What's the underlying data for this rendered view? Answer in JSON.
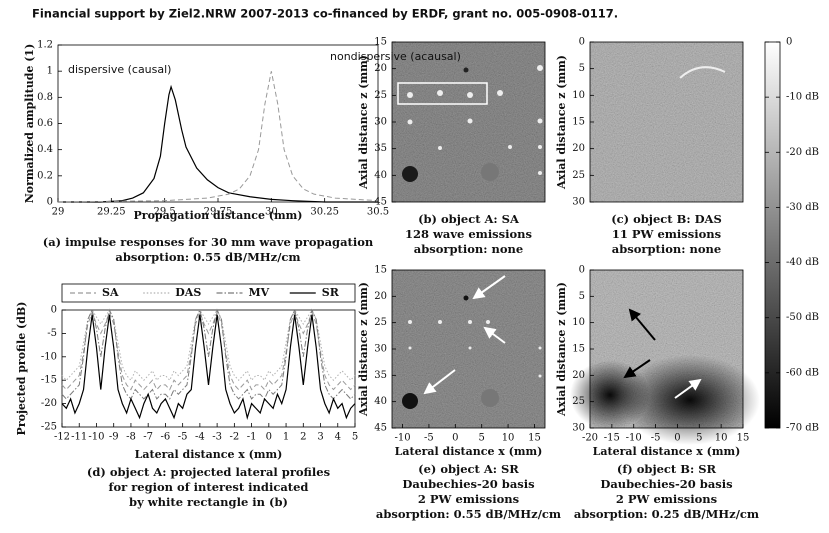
{
  "header": {
    "text": "Financial support by Ziel2.NRW 2007-2013 co-financed by ERDF, grant no. 005-0908-0117."
  },
  "chart_data": [
    {
      "type": "line",
      "caption": [
        "(a) impulse responses for 30 mm wave propagation",
        "absorption: 0.55 dB/MHz/cm"
      ],
      "xlabel": "Propagation distance (mm)",
      "ylabel": "Normalized amplitude (1)",
      "xlim": [
        29,
        30.5
      ],
      "xticks": [
        29,
        29.25,
        29.5,
        29.75,
        30,
        30.25,
        30.5
      ],
      "ylim": [
        0,
        1.2
      ],
      "yticks": [
        0,
        0.2,
        0.4,
        0.6,
        0.8,
        1,
        1.2
      ],
      "series": [
        {
          "name": "dispersive (causal)",
          "color": "#000000",
          "style": "solid",
          "x": [
            29,
            29.2,
            29.3,
            29.35,
            29.4,
            29.45,
            29.48,
            29.5,
            29.52,
            29.53,
            29.55,
            29.58,
            29.6,
            29.65,
            29.7,
            29.75,
            29.8,
            29.9,
            30,
            30.1,
            30.25,
            30.5
          ],
          "values": [
            0,
            0,
            0.01,
            0.03,
            0.07,
            0.18,
            0.35,
            0.6,
            0.82,
            0.88,
            0.78,
            0.55,
            0.42,
            0.26,
            0.17,
            0.11,
            0.07,
            0.04,
            0.02,
            0.01,
            0,
            0
          ]
        },
        {
          "name": "nondispersive (acausal)",
          "color": "#999999",
          "style": "dashed",
          "x": [
            29,
            29.5,
            29.7,
            29.8,
            29.85,
            29.9,
            29.94,
            29.97,
            30,
            30.03,
            30.06,
            30.1,
            30.15,
            30.2,
            30.3,
            30.5
          ],
          "values": [
            0,
            0.01,
            0.03,
            0.06,
            0.1,
            0.2,
            0.4,
            0.75,
            1,
            0.75,
            0.4,
            0.2,
            0.1,
            0.06,
            0.03,
            0.01
          ]
        }
      ]
    },
    {
      "type": "line",
      "caption": [
        "(d) object A: projected lateral profiles",
        "for region of interest indicated",
        "by white rectangle in (b)"
      ],
      "xlabel": "Lateral distance x (mm)",
      "ylabel": "Projected profile (dB)",
      "legend": "top",
      "xlim": [
        -12,
        5
      ],
      "xticks": [
        -12,
        -11,
        -10,
        -9,
        -8,
        -7,
        -6,
        -5,
        -4,
        -3,
        -2,
        -1,
        0,
        1,
        2,
        3,
        4,
        5
      ],
      "ylim": [
        -25,
        0
      ],
      "yticks": [
        -25,
        -20,
        -15,
        -10,
        -5,
        0
      ],
      "x": [
        -12,
        -11.75,
        -11.5,
        -11.25,
        -11,
        -10.75,
        -10.5,
        -10.25,
        -10,
        -9.75,
        -9.5,
        -9.25,
        -9,
        -8.75,
        -8.5,
        -8.25,
        -8,
        -7.75,
        -7.5,
        -7.25,
        -7,
        -6.75,
        -6.5,
        -6.25,
        -6,
        -5.75,
        -5.5,
        -5.25,
        -5,
        -4.75,
        -4.5,
        -4.25,
        -4,
        -3.75,
        -3.5,
        -3.25,
        -3,
        -2.75,
        -2.5,
        -2.25,
        -2,
        -1.75,
        -1.5,
        -1.25,
        -1,
        -0.75,
        -0.5,
        -0.25,
        0,
        0.25,
        0.5,
        0.75,
        1,
        1.25,
        1.5,
        1.75,
        2,
        2.25,
        2.5,
        2.75,
        3,
        3.25,
        3.5,
        3.75,
        4,
        4.25,
        4.5,
        4.75,
        5
      ],
      "series": [
        {
          "name": "SA",
          "color": "#9a9a9a",
          "style": "dashed",
          "values": [
            -16,
            -17,
            -16,
            -15,
            -14,
            -9,
            -3,
            -0.5,
            -3,
            -5,
            -3,
            -0.5,
            -3,
            -9,
            -14,
            -16,
            -17,
            -15,
            -16,
            -17,
            -16,
            -15,
            -17,
            -16,
            -16,
            -17,
            -15,
            -16,
            -15,
            -14,
            -9,
            -3,
            -0.5,
            -3,
            -5,
            -3,
            -0.5,
            -3,
            -9,
            -14,
            -16,
            -17,
            -16,
            -15,
            -17,
            -16,
            -16,
            -17,
            -15,
            -16,
            -15,
            -14,
            -9,
            -3,
            -0.5,
            -3,
            -5,
            -3,
            -0.5,
            -3,
            -9,
            -14,
            -16,
            -17,
            -16,
            -15,
            -16,
            -17,
            -16
          ]
        },
        {
          "name": "DAS",
          "color": "#b0b0b0",
          "style": "dotted",
          "values": [
            -14,
            -15,
            -14,
            -13,
            -12,
            -7,
            -2,
            0,
            -1.5,
            -3,
            -1.5,
            0,
            -2,
            -7,
            -12,
            -14,
            -15,
            -13,
            -14,
            -15,
            -14,
            -13,
            -15,
            -14,
            -14,
            -15,
            -13,
            -14,
            -13,
            -12,
            -7,
            -2,
            0,
            -1.5,
            -3,
            -1.5,
            0,
            -2,
            -7,
            -12,
            -14,
            -15,
            -14,
            -13,
            -15,
            -14,
            -14,
            -15,
            -13,
            -14,
            -13,
            -12,
            -7,
            -2,
            0,
            -1.5,
            -3,
            -1.5,
            0,
            -2,
            -7,
            -12,
            -14,
            -15,
            -14,
            -13,
            -14,
            -15,
            -14
          ]
        },
        {
          "name": "MV",
          "color": "#7a7a7a",
          "style": "dashdot",
          "values": [
            -18,
            -19,
            -18,
            -17,
            -16,
            -10,
            -2,
            0,
            -4,
            -10,
            -4,
            0,
            -2,
            -10,
            -16,
            -18,
            -19,
            -17,
            -18,
            -19,
            -18,
            -17,
            -19,
            -18,
            -18,
            -19,
            -17,
            -18,
            -17,
            -16,
            -10,
            -2,
            0,
            -4,
            -10,
            -4,
            0,
            -2,
            -10,
            -16,
            -18,
            -19,
            -18,
            -17,
            -19,
            -18,
            -18,
            -19,
            -17,
            -18,
            -17,
            -16,
            -10,
            -2,
            0,
            -4,
            -10,
            -4,
            0,
            -2,
            -10,
            -16,
            -18,
            -19,
            -18,
            -17,
            -18,
            -19,
            -18
          ]
        },
        {
          "name": "SR",
          "color": "#000000",
          "style": "solid",
          "values": [
            -20,
            -21,
            -19,
            -22,
            -20,
            -17,
            -8,
            -1,
            -8,
            -17,
            -8,
            -1,
            -8,
            -17,
            -20,
            -22,
            -19,
            -21,
            -23,
            -20,
            -18,
            -21,
            -22,
            -20,
            -19,
            -21,
            -23,
            -20,
            -21,
            -18,
            -17,
            -8,
            -1,
            -8,
            -16,
            -8,
            -1,
            -8,
            -17,
            -20,
            -22,
            -21,
            -19,
            -23,
            -20,
            -21,
            -22,
            -19,
            -20,
            -21,
            -18,
            -20,
            -17,
            -8,
            -1,
            -8,
            -16,
            -8,
            -1,
            -8,
            -17,
            -20,
            -22,
            -19,
            -21,
            -20,
            -23,
            -21,
            -20
          ]
        }
      ]
    },
    {
      "type": "image",
      "caption": [
        "(b) object A: SA",
        "128 wave emissions",
        "absorption: none"
      ],
      "ylabel": "Axial distance z (mm)",
      "ylim": [
        15,
        45
      ],
      "yticks": [
        15,
        20,
        25,
        30,
        35,
        40,
        45
      ],
      "y_reversed": true
    },
    {
      "type": "image",
      "caption": [
        "(c) object B: DAS",
        "11 PW emissions",
        "absorption: none"
      ],
      "ylabel": "Axial distance z (mm)",
      "ylim": [
        0,
        30
      ],
      "yticks": [
        0,
        5,
        10,
        15,
        20,
        25,
        30
      ],
      "y_reversed": true
    },
    {
      "type": "image",
      "caption": [
        "(e) object A: SR",
        "Daubechies-20 basis",
        "2 PW emissions",
        "absorption: 0.55 dB/MHz/cm"
      ],
      "xlabel": "Lateral distance x (mm)",
      "ylabel": "Axial distance z (mm)",
      "xlim": [
        -12,
        17
      ],
      "xticks": [
        -10,
        -5,
        0,
        5,
        10,
        15
      ],
      "ylim": [
        15,
        45
      ],
      "yticks": [
        15,
        20,
        25,
        30,
        35,
        40,
        45
      ],
      "y_reversed": true
    },
    {
      "type": "image",
      "caption": [
        "(f) object B: SR",
        "Daubechies-20 basis",
        "2 PW emissions",
        "absorption: 0.25 dB/MHz/cm"
      ],
      "xlabel": "Lateral distance x (mm)",
      "ylabel": "Axial distance z (mm)",
      "xlim": [
        -20,
        15
      ],
      "xticks": [
        -20,
        -15,
        -10,
        -5,
        0,
        5,
        10,
        15
      ],
      "ylim": [
        0,
        30
      ],
      "yticks": [
        0,
        5,
        10,
        15,
        20,
        25,
        30
      ],
      "y_reversed": true
    },
    {
      "type": "colorbar",
      "ylim": [
        -70,
        0
      ],
      "yticks": [
        0,
        {
          "value": -10,
          "label": "-10 dB"
        },
        {
          "value": -20,
          "label": "-20 dB"
        },
        {
          "value": -30,
          "label": "-30 dB"
        },
        {
          "value": -40,
          "label": "-40 dB"
        },
        {
          "value": -50,
          "label": "-50 dB"
        },
        {
          "value": -60,
          "label": "-60 dB"
        },
        {
          "value": -70,
          "label": "-70 dB"
        }
      ]
    }
  ]
}
